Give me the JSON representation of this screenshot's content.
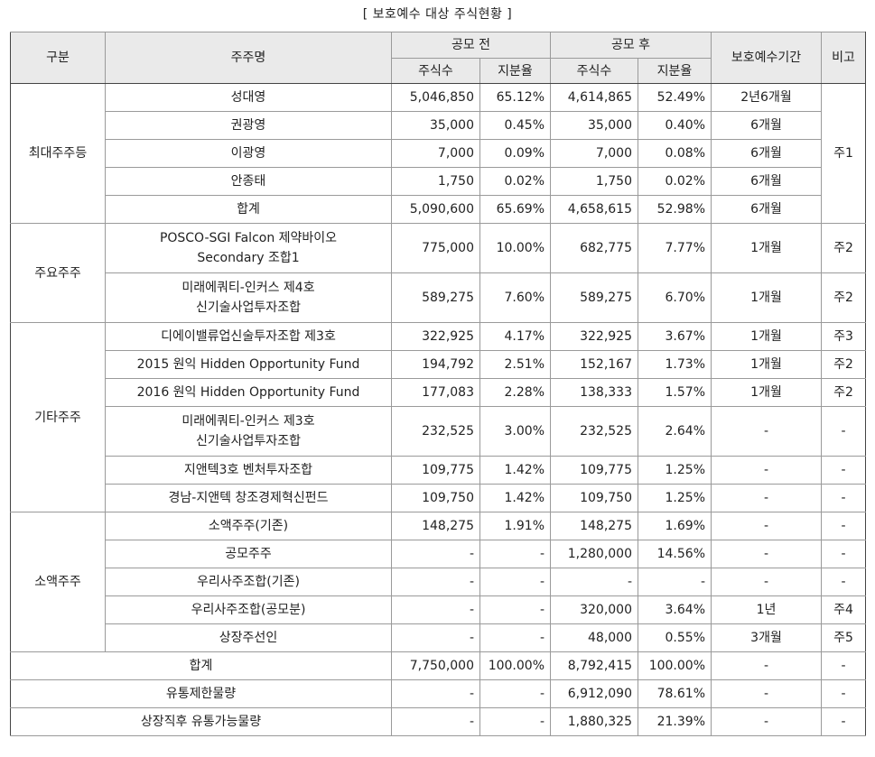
{
  "caption": "[ 보호예수 대상 주식현황 ]",
  "header": {
    "category": "구분",
    "holder": "주주명",
    "before": "공모 전",
    "after": "공모 후",
    "shares": "주식수",
    "ratio": "지분율",
    "lockup": "보호예수기간",
    "note": "비고"
  },
  "groups": [
    {
      "label": "최대주주등",
      "rows": [
        {
          "name": [
            "성대영"
          ],
          "b_shares": "5,046,850",
          "b_ratio": "65.12%",
          "a_shares": "4,614,865",
          "a_ratio": "52.49%",
          "period": "2년6개월"
        },
        {
          "name": [
            "권광영"
          ],
          "b_shares": "35,000",
          "b_ratio": "0.45%",
          "a_shares": "35,000",
          "a_ratio": "0.40%",
          "period": "6개월"
        },
        {
          "name": [
            "이광영"
          ],
          "b_shares": "7,000",
          "b_ratio": "0.09%",
          "a_shares": "7,000",
          "a_ratio": "0.08%",
          "period": "6개월"
        },
        {
          "name": [
            "안종태"
          ],
          "b_shares": "1,750",
          "b_ratio": "0.02%",
          "a_shares": "1,750",
          "a_ratio": "0.02%",
          "period": "6개월"
        },
        {
          "name": [
            "합계"
          ],
          "b_shares": "5,090,600",
          "b_ratio": "65.69%",
          "a_shares": "4,658,615",
          "a_ratio": "52.98%",
          "period": "6개월"
        }
      ],
      "merged_note": "주1"
    },
    {
      "label": "주요주주",
      "rows": [
        {
          "name": [
            "POSCO-SGI Falcon 제약바이오",
            "Secondary 조합1"
          ],
          "b_shares": "775,000",
          "b_ratio": "10.00%",
          "a_shares": "682,775",
          "a_ratio": "7.77%",
          "period": "1개월",
          "note": "주2"
        },
        {
          "name": [
            "미래에쿼티-인커스 제4호",
            "신기술사업투자조합"
          ],
          "b_shares": "589,275",
          "b_ratio": "7.60%",
          "a_shares": "589,275",
          "a_ratio": "6.70%",
          "period": "1개월",
          "note": "주2"
        }
      ]
    },
    {
      "label": "기타주주",
      "rows": [
        {
          "name": [
            "디에이밸류업신술투자조합 제3호"
          ],
          "b_shares": "322,925",
          "b_ratio": "4.17%",
          "a_shares": "322,925",
          "a_ratio": "3.67%",
          "period": "1개월",
          "note": "주3"
        },
        {
          "name": [
            "2015 원익 Hidden Opportunity Fund"
          ],
          "b_shares": "194,792",
          "b_ratio": "2.51%",
          "a_shares": "152,167",
          "a_ratio": "1.73%",
          "period": "1개월",
          "note": "주2"
        },
        {
          "name": [
            "2016 원익 Hidden Opportunity Fund"
          ],
          "b_shares": "177,083",
          "b_ratio": "2.28%",
          "a_shares": "138,333",
          "a_ratio": "1.57%",
          "period": "1개월",
          "note": "주2"
        },
        {
          "name": [
            "미래에쿼티-인커스 제3호",
            "신기술사업투자조합"
          ],
          "b_shares": "232,525",
          "b_ratio": "3.00%",
          "a_shares": "232,525",
          "a_ratio": "2.64%",
          "period": "-",
          "note": "-"
        },
        {
          "name": [
            "지앤텍3호 벤처투자조합"
          ],
          "b_shares": "109,775",
          "b_ratio": "1.42%",
          "a_shares": "109,775",
          "a_ratio": "1.25%",
          "period": "-",
          "note": "-"
        },
        {
          "name": [
            "경남-지앤텍 창조경제혁신펀드"
          ],
          "b_shares": "109,750",
          "b_ratio": "1.42%",
          "a_shares": "109,750",
          "a_ratio": "1.25%",
          "period": "-",
          "note": "-"
        }
      ]
    },
    {
      "label": "소액주주",
      "rows": [
        {
          "name": [
            "소액주주(기존)"
          ],
          "b_shares": "148,275",
          "b_ratio": "1.91%",
          "a_shares": "148,275",
          "a_ratio": "1.69%",
          "period": "-",
          "note": "-"
        },
        {
          "name": [
            "공모주주"
          ],
          "b_shares": "-",
          "b_ratio": "-",
          "a_shares": "1,280,000",
          "a_ratio": "14.56%",
          "period": "-",
          "note": "-"
        },
        {
          "name": [
            "우리사주조합(기존)"
          ],
          "b_shares": "-",
          "b_ratio": "-",
          "a_shares": "-",
          "a_ratio": "-",
          "period": "-",
          "note": "-"
        },
        {
          "name": [
            "우리사주조합(공모분)"
          ],
          "b_shares": "-",
          "b_ratio": "-",
          "a_shares": "320,000",
          "a_ratio": "3.64%",
          "period": "1년",
          "note": "주4"
        },
        {
          "name": [
            "상장주선인"
          ],
          "b_shares": "-",
          "b_ratio": "-",
          "a_shares": "48,000",
          "a_ratio": "0.55%",
          "period": "3개월",
          "note": "주5"
        }
      ]
    }
  ],
  "summary": [
    {
      "label": "합계",
      "b_shares": "7,750,000",
      "b_ratio": "100.00%",
      "a_shares": "8,792,415",
      "a_ratio": "100.00%",
      "period": "-",
      "note": "-"
    },
    {
      "label": "유통제한물량",
      "b_shares": "-",
      "b_ratio": "-",
      "a_shares": "6,912,090",
      "a_ratio": "78.61%",
      "period": "-",
      "note": "-"
    },
    {
      "label": "상장직후 유통가능물량",
      "b_shares": "-",
      "b_ratio": "-",
      "a_shares": "1,880,325",
      "a_ratio": "21.39%",
      "period": "-",
      "note": "-"
    }
  ]
}
